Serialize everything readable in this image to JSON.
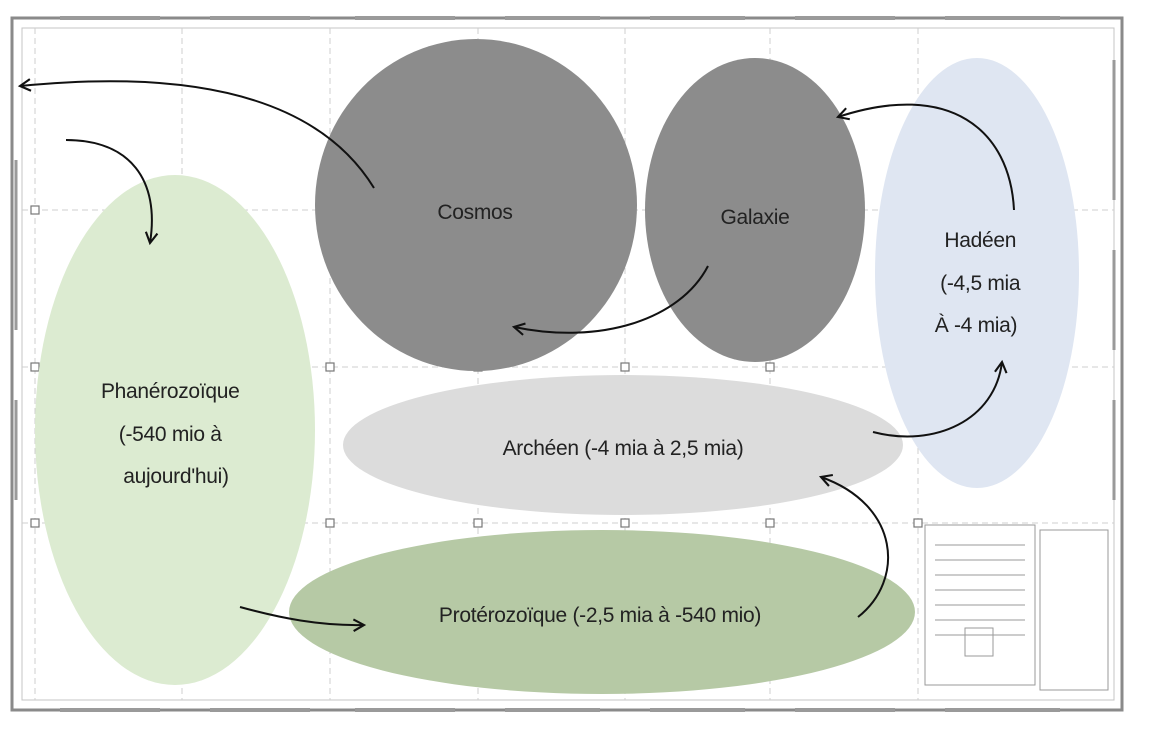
{
  "colors": {
    "dark_grey": "#8c8c8c",
    "light_grey": "#dcdcdc",
    "pale_blue": "#dfe6f2",
    "pale_green": "#dcebd1",
    "olive_green": "#b6c9a5",
    "plan_lines": "#b8b8b8",
    "arrow": "#111111"
  },
  "regions": {
    "cosmos": {
      "label": "Cosmos"
    },
    "galaxie": {
      "label": "Galaxie"
    },
    "hadeen": {
      "lines": [
        "Hadéen",
        "(-4,5 mia",
        "À -4 mia)"
      ]
    },
    "archeen": {
      "label": "Archéen (-4 mia à 2,5 mia)"
    },
    "proterozoique": {
      "label": "Protérozoïque (-2,5 mia à -540 mio)"
    },
    "phanerozoique": {
      "lines": [
        "Phanérozoïque",
        "(-540 mio à",
        "aujourd'hui)"
      ]
    }
  },
  "sequence": [
    "hadeen",
    "archeen",
    "proterozoique",
    "phanerozoique",
    "cosmos",
    "galaxie",
    "hadeen"
  ]
}
